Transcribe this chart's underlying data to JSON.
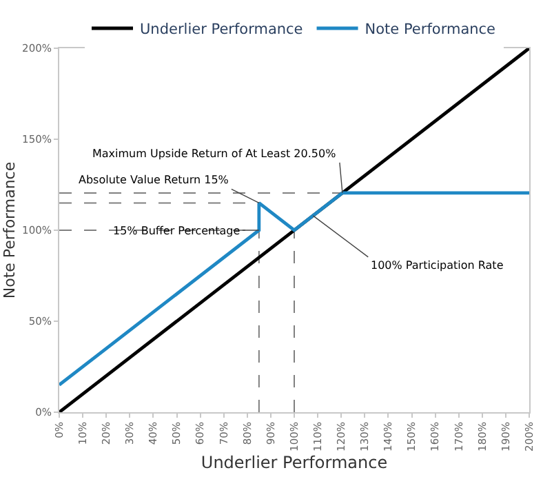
{
  "chart_data": {
    "type": "line",
    "xlabel": "Underlier Performance",
    "ylabel": "Note Performance",
    "xlim": [
      0,
      200
    ],
    "ylim": [
      0,
      200
    ],
    "xticks": [
      {
        "value": 0,
        "label": "0%"
      },
      {
        "value": 10,
        "label": "10%"
      },
      {
        "value": 20,
        "label": "20%"
      },
      {
        "value": 30,
        "label": "30%"
      },
      {
        "value": 40,
        "label": "40%"
      },
      {
        "value": 50,
        "label": "50%"
      },
      {
        "value": 60,
        "label": "60%"
      },
      {
        "value": 70,
        "label": "70%"
      },
      {
        "value": 80,
        "label": "80%"
      },
      {
        "value": 90,
        "label": "90%"
      },
      {
        "value": 100,
        "label": "100%"
      },
      {
        "value": 110,
        "label": "110%"
      },
      {
        "value": 120,
        "label": "120%"
      },
      {
        "value": 130,
        "label": "130%"
      },
      {
        "value": 140,
        "label": "140%"
      },
      {
        "value": 150,
        "label": "150%"
      },
      {
        "value": 160,
        "label": "160%"
      },
      {
        "value": 170,
        "label": "170%"
      },
      {
        "value": 180,
        "label": "180%"
      },
      {
        "value": 190,
        "label": "190%"
      },
      {
        "value": 200,
        "label": "200%"
      }
    ],
    "yticks": [
      {
        "value": 0,
        "label": "0%"
      },
      {
        "value": 50,
        "label": "50%"
      },
      {
        "value": 100,
        "label": "100%"
      },
      {
        "value": 150,
        "label": "150%"
      },
      {
        "value": 200,
        "label": "200%"
      }
    ],
    "series": [
      {
        "x": [
          0,
          120.5
        ],
        "values": [
          120.5,
          120.5
        ],
        "color": "#808080",
        "line_style": "dashed"
      },
      {
        "x": [
          0,
          85
        ],
        "values": [
          115,
          115
        ],
        "color": "#808080",
        "line_style": "dashed"
      },
      {
        "x": [
          0,
          85
        ],
        "values": [
          100,
          100
        ],
        "color": "#808080",
        "line_style": "dashed"
      },
      {
        "x": [
          85,
          85
        ],
        "values": [
          0,
          100
        ],
        "color": "#808080",
        "line_style": "dashed"
      },
      {
        "x": [
          100,
          100
        ],
        "values": [
          0,
          100
        ],
        "color": "#808080",
        "line_style": "dashed"
      },
      {
        "name": "Underlier Performance",
        "x": [
          0,
          200
        ],
        "values": [
          0,
          200
        ],
        "color": "#000000",
        "line_style": "solid"
      },
      {
        "name": "Note Performance",
        "x": [
          0,
          85,
          85,
          100,
          120.5,
          200
        ],
        "values": [
          15,
          100,
          115,
          100,
          120.5,
          120.5
        ],
        "color": "#1f88c4",
        "line_style": "solid"
      }
    ],
    "annotations": [
      {
        "text": "Maximum Upside Return of At Least 20.50%",
        "x": 120.5,
        "y": 120.5
      },
      {
        "text": "Absolute Value Return 15%",
        "x": 85,
        "y": 115
      },
      {
        "text": "15% Buffer Percentage",
        "x": 85,
        "y": 100
      },
      {
        "text": "100% Participation Rate",
        "x": 108,
        "y": 108
      }
    ],
    "grid": false,
    "legend": "top",
    "marker": "none"
  }
}
